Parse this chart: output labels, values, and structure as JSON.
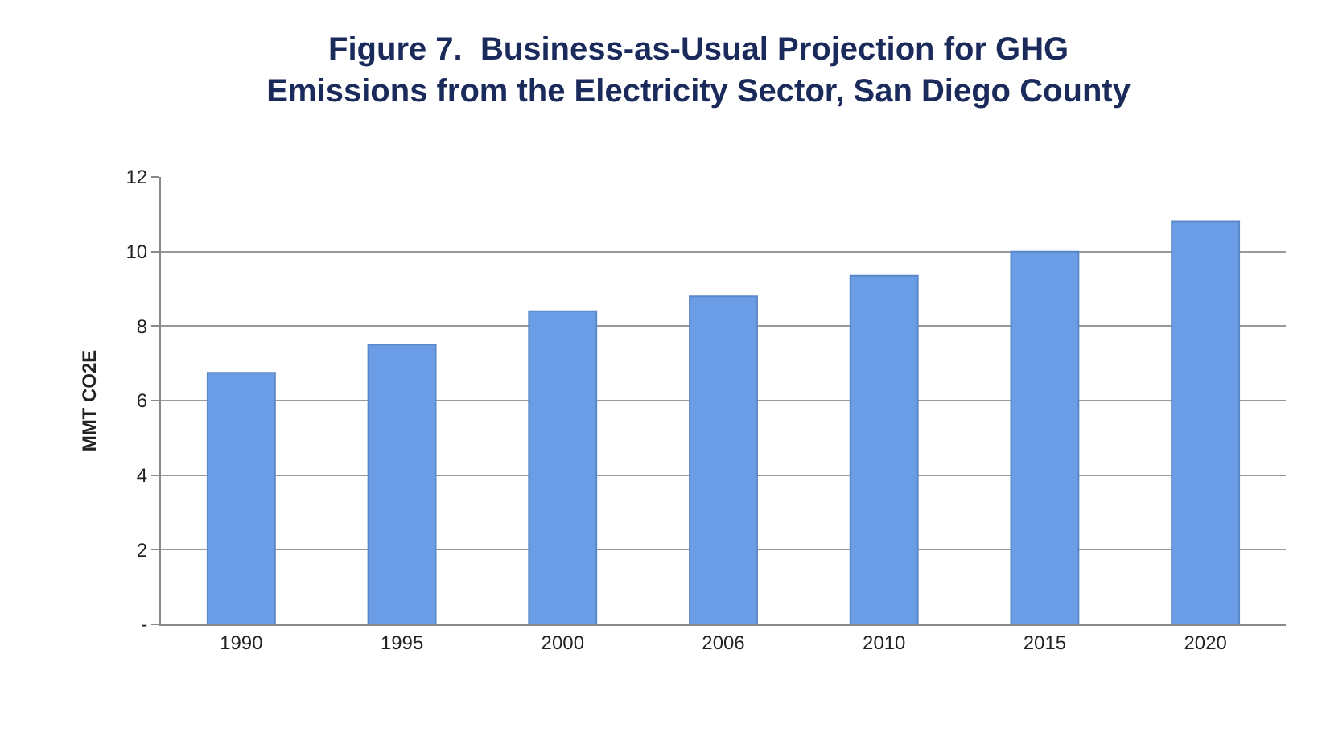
{
  "chart_data": {
    "type": "bar",
    "title": "Figure 7.  Business-as-Usual Projection for GHG\nEmissions from the Electricity Sector, San Diego County",
    "ylabel": "MMT CO2E",
    "categories": [
      "1990",
      "1995",
      "2000",
      "2006",
      "2010",
      "2015",
      "2020"
    ],
    "values": [
      6.75,
      7.5,
      8.4,
      8.8,
      9.35,
      10.0,
      10.8
    ],
    "color": "#6a9de6",
    "ylim": [
      0,
      12
    ],
    "yticks": [
      {
        "value": 0,
        "label": "-"
      },
      2,
      4,
      6,
      8,
      10,
      12
    ],
    "grid": "y"
  }
}
